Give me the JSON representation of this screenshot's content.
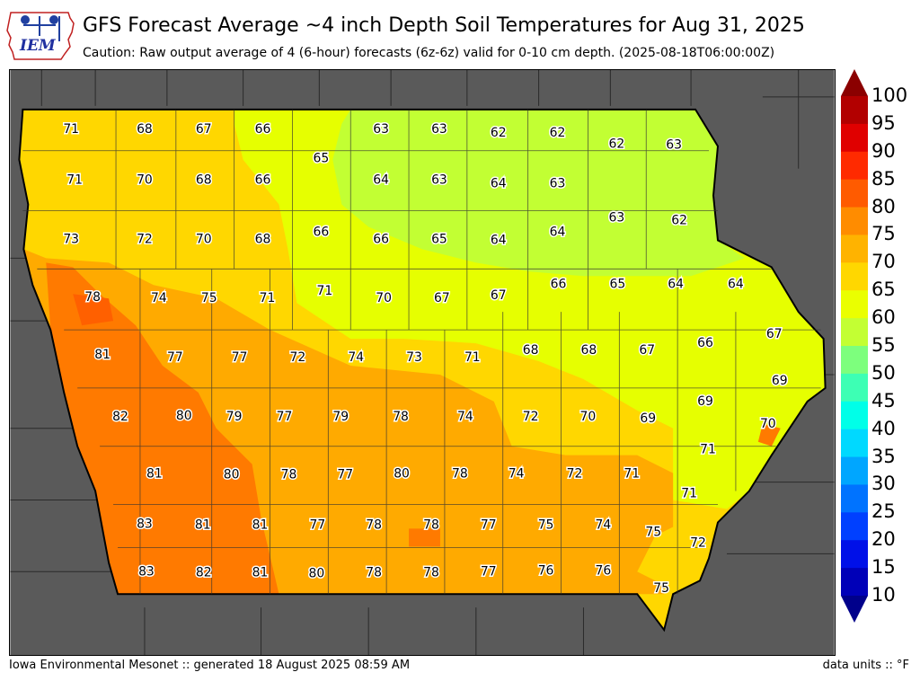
{
  "header": {
    "title": "GFS Forecast Average ~4 inch Depth Soil Temperatures for Aug 31, 2025",
    "subtitle": "Caution: Raw output average of 4 (6-hour) forecasts (6z-6z) valid for 0-10 cm depth. (2025-08-18T06:00:00Z)",
    "logo_text": "IEM"
  },
  "footer": {
    "source": "Iowa Environmental Mesonet :: generated 18 August 2025 08:59 AM",
    "units": "data units :: °F"
  },
  "colorbar": {
    "labels": [
      "100",
      "95",
      "90",
      "85",
      "80",
      "75",
      "70",
      "65",
      "60",
      "55",
      "50",
      "45",
      "40",
      "35",
      "30",
      "25",
      "20",
      "15",
      "10"
    ],
    "colors": [
      "#8b0000",
      "#b20000",
      "#e00000",
      "#ff2a00",
      "#ff5b00",
      "#ff8c00",
      "#ffb300",
      "#ffd700",
      "#eaff00",
      "#c3ff33",
      "#7dff7d",
      "#3dffb4",
      "#00ffe8",
      "#00d9ff",
      "#00a6ff",
      "#0073ff",
      "#0040ff",
      "#0010e8",
      "#0000b8",
      "#00008b"
    ]
  },
  "values": {
    "row1": [
      "71",
      "68",
      "67",
      "66",
      "63",
      "63",
      "62",
      "62",
      "62",
      "63"
    ],
    "row1b": [
      "65"
    ],
    "row2": [
      "71",
      "70",
      "68",
      "66",
      "64",
      "63",
      "64",
      "63",
      "63",
      "62"
    ],
    "row3": [
      "73",
      "72",
      "70",
      "68",
      "66",
      "66",
      "65",
      "64",
      "64"
    ],
    "row4": [
      "78",
      "74",
      "75",
      "71",
      "71",
      "70",
      "67",
      "67",
      "66",
      "65",
      "64",
      "64"
    ],
    "row5": [
      "81",
      "77",
      "77",
      "72",
      "74",
      "73",
      "71",
      "68",
      "68",
      "67",
      "66",
      "67",
      "69"
    ],
    "row6": [
      "82",
      "80",
      "79",
      "77",
      "79",
      "78",
      "74",
      "72",
      "70",
      "69",
      "69",
      "70"
    ],
    "row7": [
      "81",
      "80",
      "78",
      "77",
      "80",
      "78",
      "74",
      "72",
      "71",
      "71",
      "71"
    ],
    "row8": [
      "83",
      "81",
      "81",
      "77",
      "78",
      "78",
      "77",
      "75",
      "74",
      "75",
      "72"
    ],
    "row9": [
      "83",
      "82",
      "81",
      "80",
      "78",
      "78",
      "77",
      "76",
      "76",
      "75"
    ]
  }
}
